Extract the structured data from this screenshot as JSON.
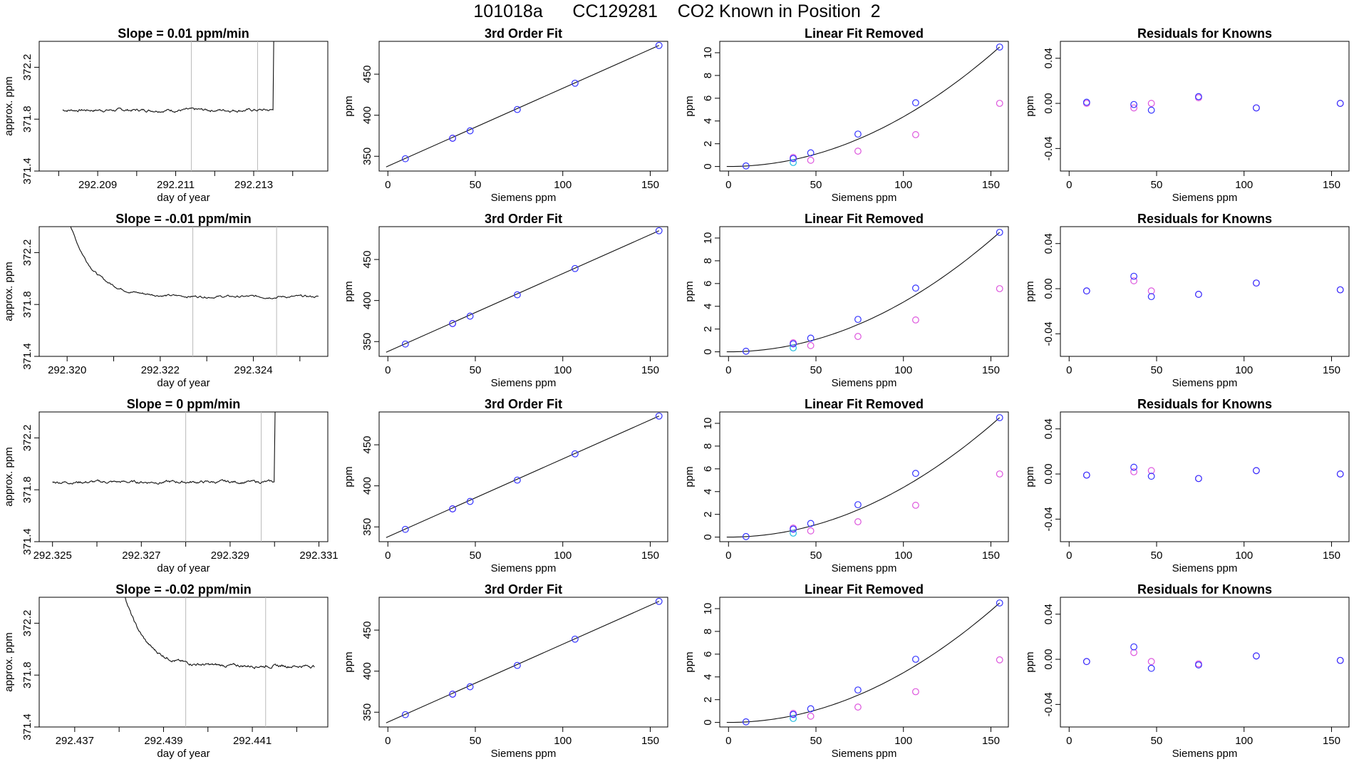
{
  "title": "101018a      CC129281    CO2 Known in Position  2",
  "chart_data": [
    {
      "type": "line",
      "title": "Slope =  0.01  ppm/min",
      "xlabel": "day of year",
      "ylabel": "approx. ppm",
      "xlim": [
        292.2075,
        292.2149
      ],
      "ylim": [
        371.4,
        372.4
      ],
      "xticks": [
        "292.209",
        "292.211",
        "292.213"
      ],
      "yticks": [
        "371.4",
        "371.8",
        "372.2"
      ],
      "xtick_minor": [
        292.208,
        292.209,
        292.21,
        292.211,
        292.212,
        292.213,
        292.214
      ],
      "series": [
        {
          "x_start": 292.2081,
          "x_end": 292.2137,
          "level": 371.87,
          "noise": 0.012,
          "spike_at": 292.2135
        }
      ],
      "vlines": [
        292.2114,
        292.2131
      ]
    },
    {
      "type": "scatter",
      "title": "3rd Order Fit",
      "xlabel": "Siemens ppm",
      "ylabel": "ppm",
      "xlim": [
        -5,
        160
      ],
      "ylim": [
        332,
        490
      ],
      "xticks": [
        0,
        50,
        100,
        150
      ],
      "yticks": [
        350,
        400,
        450
      ],
      "points_blue": [
        [
          10,
          347
        ],
        [
          37,
          372
        ],
        [
          47,
          381
        ],
        [
          74,
          407
        ],
        [
          107,
          439
        ],
        [
          155,
          485
        ]
      ],
      "points_magenta": [
        [
          37,
          372
        ]
      ],
      "fit_line": [
        [
          -1,
          337
        ],
        [
          155,
          485
        ]
      ]
    },
    {
      "type": "scatter",
      "title": "Linear Fit Removed",
      "xlabel": "Siemens ppm",
      "ylabel": "ppm",
      "xlim": [
        -5,
        160
      ],
      "ylim": [
        -0.4,
        11
      ],
      "xticks": [
        0,
        50,
        100,
        150
      ],
      "yticks": [
        0,
        2,
        4,
        6,
        8,
        10
      ],
      "points_blue": [
        [
          10,
          0.05
        ],
        [
          37,
          0.7
        ],
        [
          47,
          1.2
        ],
        [
          74,
          2.85
        ],
        [
          107,
          5.6
        ],
        [
          155,
          10.5
        ]
      ],
      "points_magenta": [
        [
          37,
          0.8
        ],
        [
          47,
          0.55
        ],
        [
          74,
          1.35
        ],
        [
          107,
          2.8
        ],
        [
          155,
          5.55
        ]
      ],
      "points_cyan": [
        [
          37,
          0.35
        ]
      ],
      "curve_a": 0.000437
    },
    {
      "type": "scatter",
      "title": "Residuals for Knowns",
      "xlabel": "Siemens ppm",
      "ylabel": "ppm",
      "xlim": [
        -5,
        160
      ],
      "ylim": [
        -0.06,
        0.055
      ],
      "xticks": [
        0,
        50,
        100,
        150
      ],
      "yticks": [
        "-0.04",
        "0.00",
        "0.04"
      ],
      "points_blue": [
        [
          10,
          0.001
        ],
        [
          37,
          -0.001
        ],
        [
          47,
          -0.006
        ],
        [
          74,
          0.006
        ],
        [
          107,
          -0.004
        ],
        [
          155,
          0.0
        ]
      ],
      "points_magenta": [
        [
          10,
          0.0
        ],
        [
          37,
          -0.004
        ],
        [
          47,
          0.0
        ],
        [
          74,
          0.005
        ],
        [
          107,
          -0.004
        ],
        [
          155,
          0.0
        ]
      ]
    },
    {
      "type": "line",
      "title": "Slope =  -0.01  ppm/min",
      "xlabel": "day of year",
      "ylabel": "approx. ppm",
      "xlim": [
        292.3194,
        292.3256
      ],
      "ylim": [
        371.4,
        372.4
      ],
      "xticks": [
        "292.320",
        "292.322",
        "292.324"
      ],
      "yticks": [
        "371.4",
        "371.8",
        "372.2"
      ],
      "xtick_minor": [
        292.32,
        292.321,
        292.322,
        292.323,
        292.324,
        292.325
      ],
      "series": [
        {
          "x_start": 292.32,
          "x_end": 292.3254,
          "level": 371.86,
          "noise": 0.01,
          "decay_from": 372.5,
          "decay_tau": 0.0005
        }
      ],
      "vlines": [
        292.3227,
        292.3245
      ]
    },
    {
      "type": "scatter",
      "title": "3rd Order Fit",
      "xlabel": "Siemens ppm",
      "ylabel": "ppm",
      "xlim": [
        -5,
        160
      ],
      "ylim": [
        332,
        490
      ],
      "xticks": [
        0,
        50,
        100,
        150
      ],
      "yticks": [
        350,
        400,
        450
      ],
      "points_blue": [
        [
          10,
          347
        ],
        [
          37,
          372
        ],
        [
          47,
          381
        ],
        [
          74,
          407
        ],
        [
          107,
          439
        ],
        [
          155,
          485
        ]
      ],
      "points_magenta": [
        [
          37,
          372
        ]
      ],
      "fit_line": [
        [
          -1,
          337
        ],
        [
          155,
          485
        ]
      ]
    },
    {
      "type": "scatter",
      "title": "Linear Fit Removed",
      "xlabel": "Siemens ppm",
      "ylabel": "ppm",
      "xlim": [
        -5,
        160
      ],
      "ylim": [
        -0.4,
        11
      ],
      "xticks": [
        0,
        50,
        100,
        150
      ],
      "yticks": [
        0,
        2,
        4,
        6,
        8,
        10
      ],
      "points_blue": [
        [
          10,
          0.05
        ],
        [
          37,
          0.7
        ],
        [
          47,
          1.2
        ],
        [
          74,
          2.85
        ],
        [
          107,
          5.6
        ],
        [
          155,
          10.5
        ]
      ],
      "points_magenta": [
        [
          37,
          0.8
        ],
        [
          47,
          0.55
        ],
        [
          74,
          1.35
        ],
        [
          107,
          2.8
        ],
        [
          155,
          5.55
        ]
      ],
      "points_cyan": [
        [
          37,
          0.35
        ]
      ],
      "curve_a": 0.000437
    },
    {
      "type": "scatter",
      "title": "Residuals for Knowns",
      "xlabel": "Siemens ppm",
      "ylabel": "ppm",
      "xlim": [
        -5,
        160
      ],
      "ylim": [
        -0.06,
        0.055
      ],
      "xticks": [
        0,
        50,
        100,
        150
      ],
      "yticks": [
        "-0.04",
        "0.00",
        "0.04"
      ],
      "points_blue": [
        [
          10,
          -0.002
        ],
        [
          37,
          0.011
        ],
        [
          47,
          -0.007
        ],
        [
          74,
          -0.005
        ],
        [
          107,
          0.005
        ],
        [
          155,
          -0.001
        ]
      ],
      "points_magenta": [
        [
          10,
          -0.002
        ],
        [
          37,
          0.007
        ],
        [
          47,
          -0.002
        ],
        [
          74,
          -0.005
        ],
        [
          107,
          0.005
        ],
        [
          155,
          -0.001
        ]
      ]
    },
    {
      "type": "line",
      "title": "Slope =  0  ppm/min",
      "xlabel": "day of year",
      "ylabel": "approx. ppm",
      "xlim": [
        292.3247,
        292.3312
      ],
      "ylim": [
        371.4,
        372.4
      ],
      "xticks": [
        "292.325",
        "292.327",
        "292.329",
        "292.331"
      ],
      "yticks": [
        "371.4",
        "371.8",
        "372.2"
      ],
      "xtick_minor": [
        292.325,
        292.326,
        292.327,
        292.328,
        292.329,
        292.33,
        292.331
      ],
      "series": [
        {
          "x_start": 292.325,
          "x_end": 292.3302,
          "level": 371.86,
          "noise": 0.012,
          "spike_at": 292.33
        }
      ],
      "vlines": [
        292.328,
        292.3297
      ]
    },
    {
      "type": "scatter",
      "title": "3rd Order Fit",
      "xlabel": "Siemens ppm",
      "ylabel": "ppm",
      "xlim": [
        -5,
        160
      ],
      "ylim": [
        332,
        490
      ],
      "xticks": [
        0,
        50,
        100,
        150
      ],
      "yticks": [
        350,
        400,
        450
      ],
      "points_blue": [
        [
          10,
          347
        ],
        [
          37,
          372
        ],
        [
          47,
          381
        ],
        [
          74,
          407
        ],
        [
          107,
          439
        ],
        [
          155,
          485
        ]
      ],
      "points_magenta": [
        [
          37,
          372
        ]
      ],
      "fit_line": [
        [
          -1,
          337
        ],
        [
          155,
          485
        ]
      ]
    },
    {
      "type": "scatter",
      "title": "Linear Fit Removed",
      "xlabel": "Siemens ppm",
      "ylabel": "ppm",
      "xlim": [
        -5,
        160
      ],
      "ylim": [
        -0.4,
        11
      ],
      "xticks": [
        0,
        50,
        100,
        150
      ],
      "yticks": [
        0,
        2,
        4,
        6,
        8,
        10
      ],
      "points_blue": [
        [
          10,
          0.05
        ],
        [
          37,
          0.7
        ],
        [
          47,
          1.2
        ],
        [
          74,
          2.85
        ],
        [
          107,
          5.6
        ],
        [
          155,
          10.5
        ]
      ],
      "points_magenta": [
        [
          37,
          0.8
        ],
        [
          47,
          0.55
        ],
        [
          74,
          1.35
        ],
        [
          107,
          2.8
        ],
        [
          155,
          5.55
        ]
      ],
      "points_cyan": [
        [
          37,
          0.35
        ]
      ],
      "curve_a": 0.000437
    },
    {
      "type": "scatter",
      "title": "Residuals for Knowns",
      "xlabel": "Siemens ppm",
      "ylabel": "ppm",
      "xlim": [
        -5,
        160
      ],
      "ylim": [
        -0.06,
        0.055
      ],
      "xticks": [
        0,
        50,
        100,
        150
      ],
      "yticks": [
        "-0.04",
        "0.00",
        "0.04"
      ],
      "points_blue": [
        [
          10,
          -0.001
        ],
        [
          37,
          0.006
        ],
        [
          47,
          -0.002
        ],
        [
          74,
          -0.004
        ],
        [
          107,
          0.003
        ],
        [
          155,
          0.0
        ]
      ],
      "points_magenta": [
        [
          10,
          -0.001
        ],
        [
          37,
          0.002
        ],
        [
          47,
          0.003
        ],
        [
          74,
          -0.004
        ],
        [
          107,
          0.003
        ],
        [
          155,
          0.0
        ]
      ]
    },
    {
      "type": "line",
      "title": "Slope =  -0.02  ppm/min",
      "xlabel": "day of year",
      "ylabel": "approx. ppm",
      "xlim": [
        292.4362,
        292.4427
      ],
      "ylim": [
        371.4,
        372.4
      ],
      "xticks": [
        "292.437",
        "292.439",
        "292.441"
      ],
      "yticks": [
        "371.4",
        "371.8",
        "372.2"
      ],
      "xtick_minor": [
        292.437,
        292.438,
        292.439,
        292.44,
        292.441,
        292.442
      ],
      "series": [
        {
          "x_start": 292.438,
          "x_end": 292.4424,
          "level": 371.87,
          "noise": 0.012,
          "decay_from": 372.6,
          "decay_tau": 0.00045
        }
      ],
      "vlines": [
        292.4395,
        292.4413
      ]
    },
    {
      "type": "scatter",
      "title": "3rd Order Fit",
      "xlabel": "Siemens ppm",
      "ylabel": "ppm",
      "xlim": [
        -5,
        160
      ],
      "ylim": [
        332,
        490
      ],
      "xticks": [
        0,
        50,
        100,
        150
      ],
      "yticks": [
        350,
        400,
        450
      ],
      "points_blue": [
        [
          10,
          347
        ],
        [
          37,
          372
        ],
        [
          47,
          381
        ],
        [
          74,
          407
        ],
        [
          107,
          439
        ],
        [
          155,
          485
        ]
      ],
      "points_magenta": [
        [
          37,
          372
        ]
      ],
      "fit_line": [
        [
          -1,
          337
        ],
        [
          155,
          485
        ]
      ]
    },
    {
      "type": "scatter",
      "title": "Linear Fit Removed",
      "xlabel": "Siemens ppm",
      "ylabel": "ppm",
      "xlim": [
        -5,
        160
      ],
      "ylim": [
        -0.4,
        11
      ],
      "xticks": [
        0,
        50,
        100,
        150
      ],
      "yticks": [
        0,
        2,
        4,
        6,
        8,
        10
      ],
      "points_blue": [
        [
          10,
          0.05
        ],
        [
          37,
          0.7
        ],
        [
          47,
          1.2
        ],
        [
          74,
          2.85
        ],
        [
          107,
          5.55
        ],
        [
          155,
          10.5
        ]
      ],
      "points_magenta": [
        [
          37,
          0.8
        ],
        [
          47,
          0.55
        ],
        [
          74,
          1.35
        ],
        [
          107,
          2.7
        ],
        [
          155,
          5.5
        ]
      ],
      "points_cyan": [
        [
          37,
          0.35
        ]
      ],
      "curve_a": 0.000437
    },
    {
      "type": "scatter",
      "title": "Residuals for Knowns",
      "xlabel": "Siemens ppm",
      "ylabel": "ppm",
      "xlim": [
        -5,
        160
      ],
      "ylim": [
        -0.06,
        0.055
      ],
      "xticks": [
        0,
        50,
        100,
        150
      ],
      "yticks": [
        "-0.04",
        "0.00",
        "0.04"
      ],
      "points_blue": [
        [
          10,
          -0.002
        ],
        [
          37,
          0.011
        ],
        [
          47,
          -0.008
        ],
        [
          74,
          -0.005
        ],
        [
          107,
          0.003
        ],
        [
          155,
          -0.001
        ]
      ],
      "points_magenta": [
        [
          10,
          -0.002
        ],
        [
          37,
          0.006
        ],
        [
          47,
          -0.002
        ],
        [
          74,
          -0.004
        ],
        [
          107,
          0.003
        ],
        [
          155,
          -0.001
        ]
      ]
    }
  ],
  "colors": {
    "blue": "#3333ff",
    "magenta": "#dd55dd",
    "cyan": "#22bbdd",
    "axis": "#000000",
    "vline": "#bbbbbb"
  }
}
